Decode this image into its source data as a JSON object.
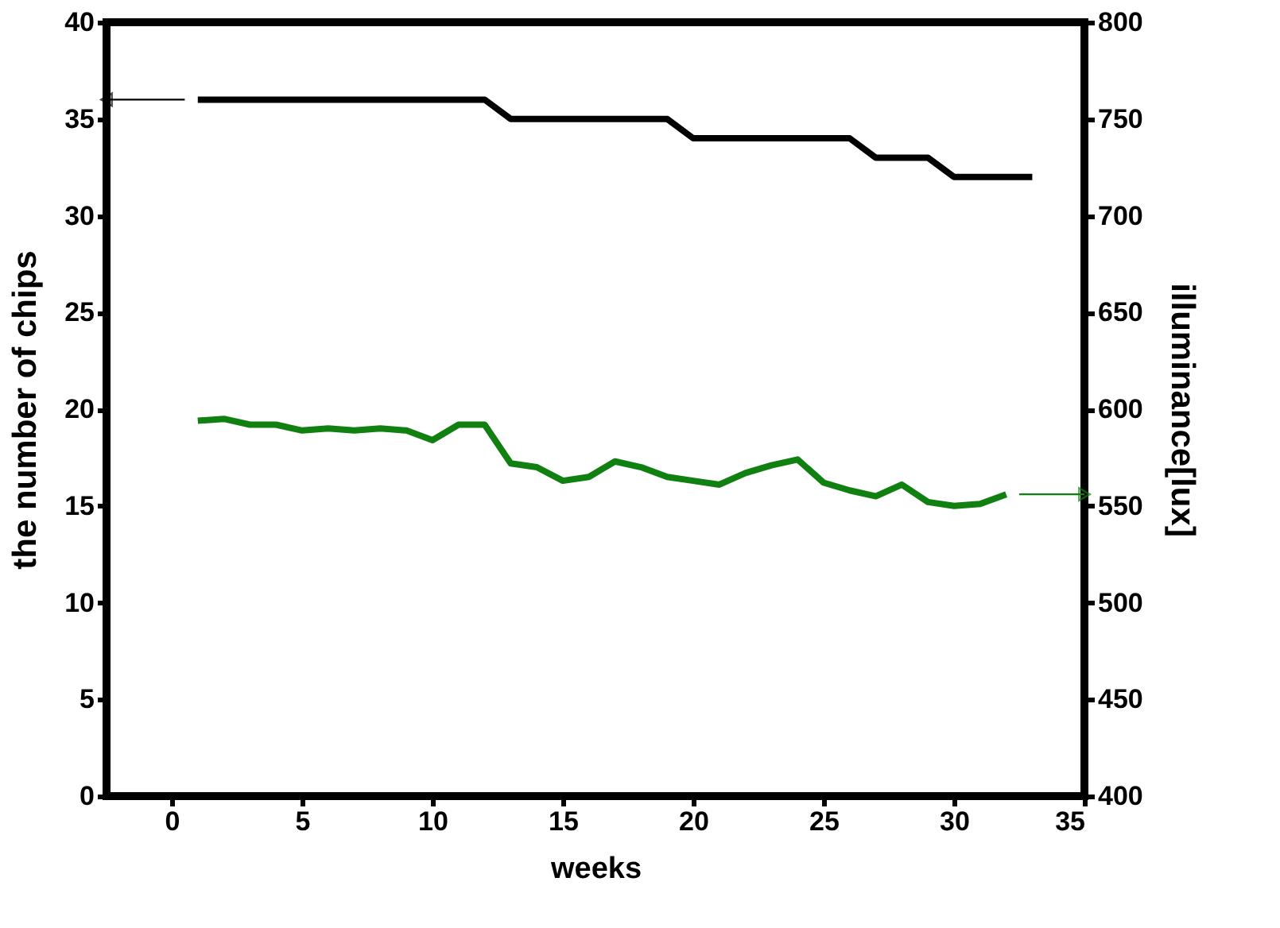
{
  "chart_data": {
    "type": "line",
    "xlabel": "weeks",
    "ylabel": "the number of chips",
    "y2label": "illuminance[lux]",
    "xlim": [
      -2.5,
      35
    ],
    "xticks": [
      0,
      5,
      10,
      15,
      20,
      25,
      30,
      35
    ],
    "ylim": [
      0,
      40
    ],
    "yticks": [
      0,
      5,
      10,
      15,
      20,
      25,
      30,
      35,
      40
    ],
    "y2lim": [
      400,
      800
    ],
    "y2ticks": [
      400,
      450,
      500,
      550,
      600,
      650,
      700,
      750,
      800
    ],
    "grid": false,
    "marker": "none",
    "line_style": "solid",
    "series": [
      {
        "color": "#000000",
        "x": [
          1,
          2,
          3,
          4,
          5,
          6,
          7,
          8,
          9,
          10,
          11,
          12,
          13,
          14,
          15,
          16,
          17,
          18,
          19,
          20,
          21,
          22,
          23,
          24,
          25,
          26,
          27,
          28,
          29,
          30,
          31,
          32,
          33
        ],
        "values": [
          36,
          36,
          36,
          36,
          36,
          36,
          36,
          36,
          36,
          36,
          36,
          36,
          35,
          35,
          35,
          35,
          35,
          35,
          35,
          34,
          34,
          34,
          34,
          34,
          34,
          34,
          33,
          33,
          33,
          32,
          32,
          32,
          32
        ]
      },
      {
        "color": "#108010",
        "axis": "y2",
        "x": [
          1,
          2,
          3,
          4,
          5,
          6,
          7,
          8,
          9,
          10,
          11,
          12,
          13,
          14,
          15,
          16,
          17,
          18,
          19,
          20,
          21,
          22,
          23,
          24,
          25,
          26,
          27,
          28,
          29,
          30,
          31,
          32
        ],
        "values": [
          594,
          595,
          592,
          592,
          589,
          590,
          589,
          590,
          589,
          584,
          592,
          592,
          572,
          570,
          563,
          565,
          573,
          570,
          565,
          563,
          561,
          567,
          571,
          574,
          562,
          558,
          555,
          561,
          552,
          550,
          551,
          556
        ]
      }
    ]
  }
}
